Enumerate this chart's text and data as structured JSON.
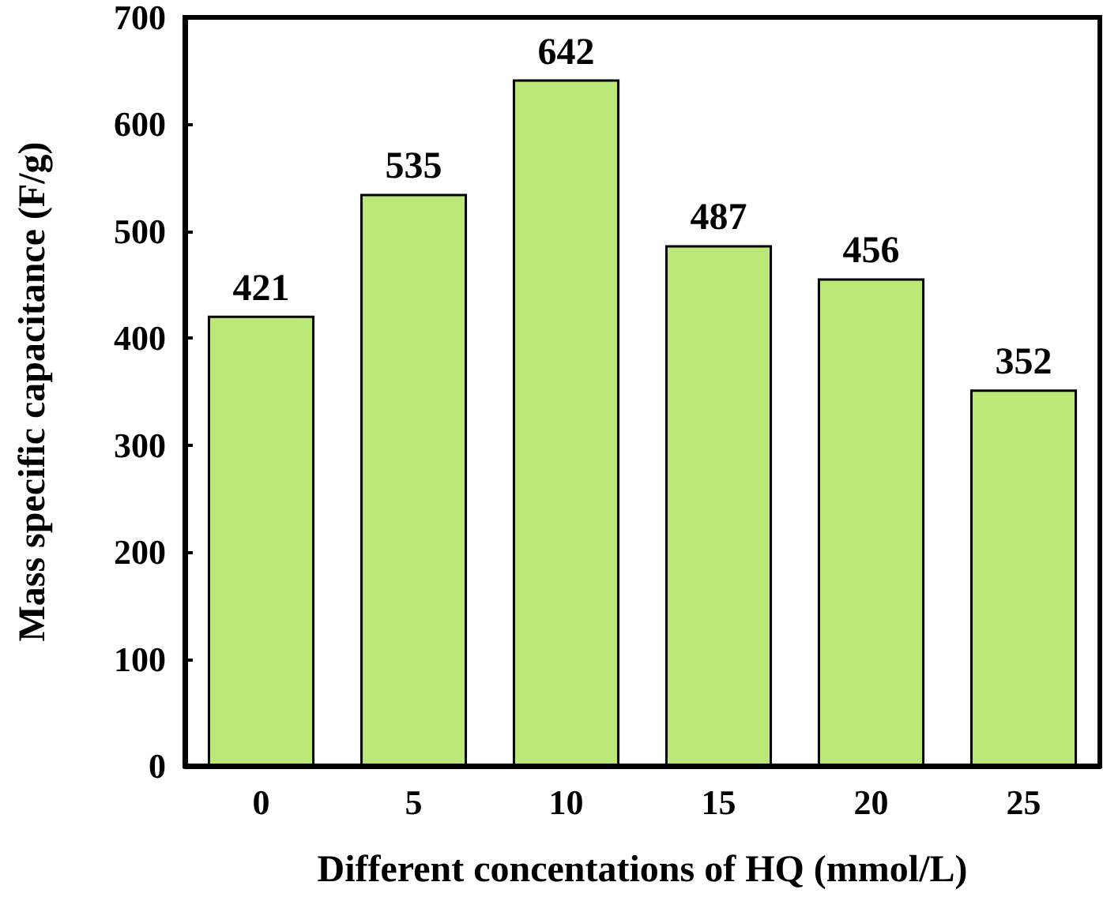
{
  "chart_data": {
    "type": "bar",
    "xlabel": "Different concentations of HQ (mmol/L)",
    "ylabel": "Mass specific capacitance (F/g)",
    "categories": [
      "0",
      "5",
      "10",
      "15",
      "20",
      "25"
    ],
    "values": [
      421,
      535,
      642,
      487,
      456,
      352
    ],
    "color": "#bbe878",
    "ylim": [
      0,
      700
    ],
    "yticks": [
      0,
      100,
      200,
      300,
      400,
      500,
      600,
      700
    ],
    "data_labels": true
  }
}
